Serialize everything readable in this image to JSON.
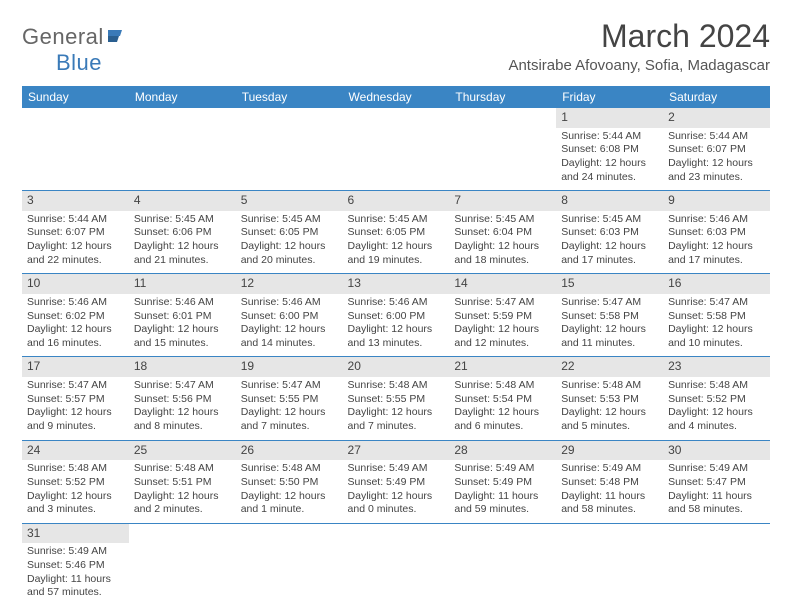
{
  "header": {
    "logo_part1": "General",
    "logo_part2": "Blue",
    "title": "March 2024",
    "location": "Antsirabe Afovoany, Sofia, Madagascar"
  },
  "colors": {
    "header_bg": "#3a85c4",
    "header_text": "#ffffff",
    "daynum_bg": "#e6e6e6",
    "row_border": "#3a85c4",
    "logo_blue": "#3a7ab8"
  },
  "dayNames": [
    "Sunday",
    "Monday",
    "Tuesday",
    "Wednesday",
    "Thursday",
    "Friday",
    "Saturday"
  ],
  "weeks": [
    [
      null,
      null,
      null,
      null,
      null,
      {
        "d": "1",
        "sr": "5:44 AM",
        "ss": "6:08 PM",
        "dl": "12 hours and 24 minutes."
      },
      {
        "d": "2",
        "sr": "5:44 AM",
        "ss": "6:07 PM",
        "dl": "12 hours and 23 minutes."
      }
    ],
    [
      {
        "d": "3",
        "sr": "5:44 AM",
        "ss": "6:07 PM",
        "dl": "12 hours and 22 minutes."
      },
      {
        "d": "4",
        "sr": "5:45 AM",
        "ss": "6:06 PM",
        "dl": "12 hours and 21 minutes."
      },
      {
        "d": "5",
        "sr": "5:45 AM",
        "ss": "6:05 PM",
        "dl": "12 hours and 20 minutes."
      },
      {
        "d": "6",
        "sr": "5:45 AM",
        "ss": "6:05 PM",
        "dl": "12 hours and 19 minutes."
      },
      {
        "d": "7",
        "sr": "5:45 AM",
        "ss": "6:04 PM",
        "dl": "12 hours and 18 minutes."
      },
      {
        "d": "8",
        "sr": "5:45 AM",
        "ss": "6:03 PM",
        "dl": "12 hours and 17 minutes."
      },
      {
        "d": "9",
        "sr": "5:46 AM",
        "ss": "6:03 PM",
        "dl": "12 hours and 17 minutes."
      }
    ],
    [
      {
        "d": "10",
        "sr": "5:46 AM",
        "ss": "6:02 PM",
        "dl": "12 hours and 16 minutes."
      },
      {
        "d": "11",
        "sr": "5:46 AM",
        "ss": "6:01 PM",
        "dl": "12 hours and 15 minutes."
      },
      {
        "d": "12",
        "sr": "5:46 AM",
        "ss": "6:00 PM",
        "dl": "12 hours and 14 minutes."
      },
      {
        "d": "13",
        "sr": "5:46 AM",
        "ss": "6:00 PM",
        "dl": "12 hours and 13 minutes."
      },
      {
        "d": "14",
        "sr": "5:47 AM",
        "ss": "5:59 PM",
        "dl": "12 hours and 12 minutes."
      },
      {
        "d": "15",
        "sr": "5:47 AM",
        "ss": "5:58 PM",
        "dl": "12 hours and 11 minutes."
      },
      {
        "d": "16",
        "sr": "5:47 AM",
        "ss": "5:58 PM",
        "dl": "12 hours and 10 minutes."
      }
    ],
    [
      {
        "d": "17",
        "sr": "5:47 AM",
        "ss": "5:57 PM",
        "dl": "12 hours and 9 minutes."
      },
      {
        "d": "18",
        "sr": "5:47 AM",
        "ss": "5:56 PM",
        "dl": "12 hours and 8 minutes."
      },
      {
        "d": "19",
        "sr": "5:47 AM",
        "ss": "5:55 PM",
        "dl": "12 hours and 7 minutes."
      },
      {
        "d": "20",
        "sr": "5:48 AM",
        "ss": "5:55 PM",
        "dl": "12 hours and 7 minutes."
      },
      {
        "d": "21",
        "sr": "5:48 AM",
        "ss": "5:54 PM",
        "dl": "12 hours and 6 minutes."
      },
      {
        "d": "22",
        "sr": "5:48 AM",
        "ss": "5:53 PM",
        "dl": "12 hours and 5 minutes."
      },
      {
        "d": "23",
        "sr": "5:48 AM",
        "ss": "5:52 PM",
        "dl": "12 hours and 4 minutes."
      }
    ],
    [
      {
        "d": "24",
        "sr": "5:48 AM",
        "ss": "5:52 PM",
        "dl": "12 hours and 3 minutes."
      },
      {
        "d": "25",
        "sr": "5:48 AM",
        "ss": "5:51 PM",
        "dl": "12 hours and 2 minutes."
      },
      {
        "d": "26",
        "sr": "5:48 AM",
        "ss": "5:50 PM",
        "dl": "12 hours and 1 minute."
      },
      {
        "d": "27",
        "sr": "5:49 AM",
        "ss": "5:49 PM",
        "dl": "12 hours and 0 minutes."
      },
      {
        "d": "28",
        "sr": "5:49 AM",
        "ss": "5:49 PM",
        "dl": "11 hours and 59 minutes."
      },
      {
        "d": "29",
        "sr": "5:49 AM",
        "ss": "5:48 PM",
        "dl": "11 hours and 58 minutes."
      },
      {
        "d": "30",
        "sr": "5:49 AM",
        "ss": "5:47 PM",
        "dl": "11 hours and 58 minutes."
      }
    ],
    [
      {
        "d": "31",
        "sr": "5:49 AM",
        "ss": "5:46 PM",
        "dl": "11 hours and 57 minutes."
      },
      null,
      null,
      null,
      null,
      null,
      null
    ]
  ],
  "labels": {
    "sunrise": "Sunrise: ",
    "sunset": "Sunset: ",
    "daylight": "Daylight: "
  }
}
